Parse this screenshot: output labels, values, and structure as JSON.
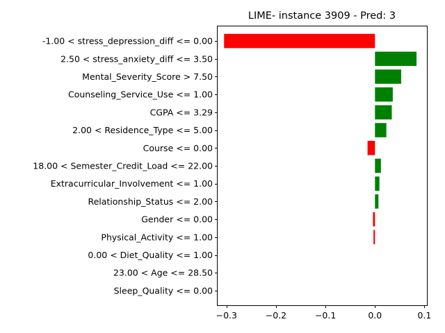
{
  "chart_data": {
    "type": "bar",
    "orientation": "horizontal",
    "title": "LIME- instance 3909 - Pred: 3",
    "xlabel": "",
    "ylabel": "",
    "xlim": [
      -0.318,
      0.105
    ],
    "xticks": [
      -0.3,
      -0.2,
      -0.1,
      0.0,
      0.1
    ],
    "xtick_labels": [
      "−0.3",
      "−0.2",
      "−0.1",
      "0.0",
      "0.1"
    ],
    "grid": false,
    "colors": {
      "positive": "#008000",
      "negative": "#ff0000"
    },
    "categories": [
      "-1.00 < stress_depression_diff <= 0.00",
      "2.50 < stress_anxiety_diff <= 3.50",
      "Mental_Severity_Score > 7.50",
      "Counseling_Service_Use <= 1.00",
      "CGPA <= 3.29",
      "2.00 < Residence_Type <= 5.00",
      "Course <= 0.00",
      "18.00 < Semester_Credit_Load <= 22.00",
      "Extracurricular_Involvement <= 1.00",
      "Relationship_Status <= 2.00",
      "Gender <= 0.00",
      "Physical_Activity <= 1.00",
      "0.00 < Diet_Quality <= 1.00",
      "23.00 < Age <= 28.50",
      "Sleep_Quality <= 0.00"
    ],
    "values": [
      -0.305,
      0.084,
      0.053,
      0.036,
      0.034,
      0.023,
      -0.015,
      0.012,
      0.009,
      0.007,
      -0.004,
      -0.003,
      0.0,
      0.0,
      0.0
    ]
  }
}
